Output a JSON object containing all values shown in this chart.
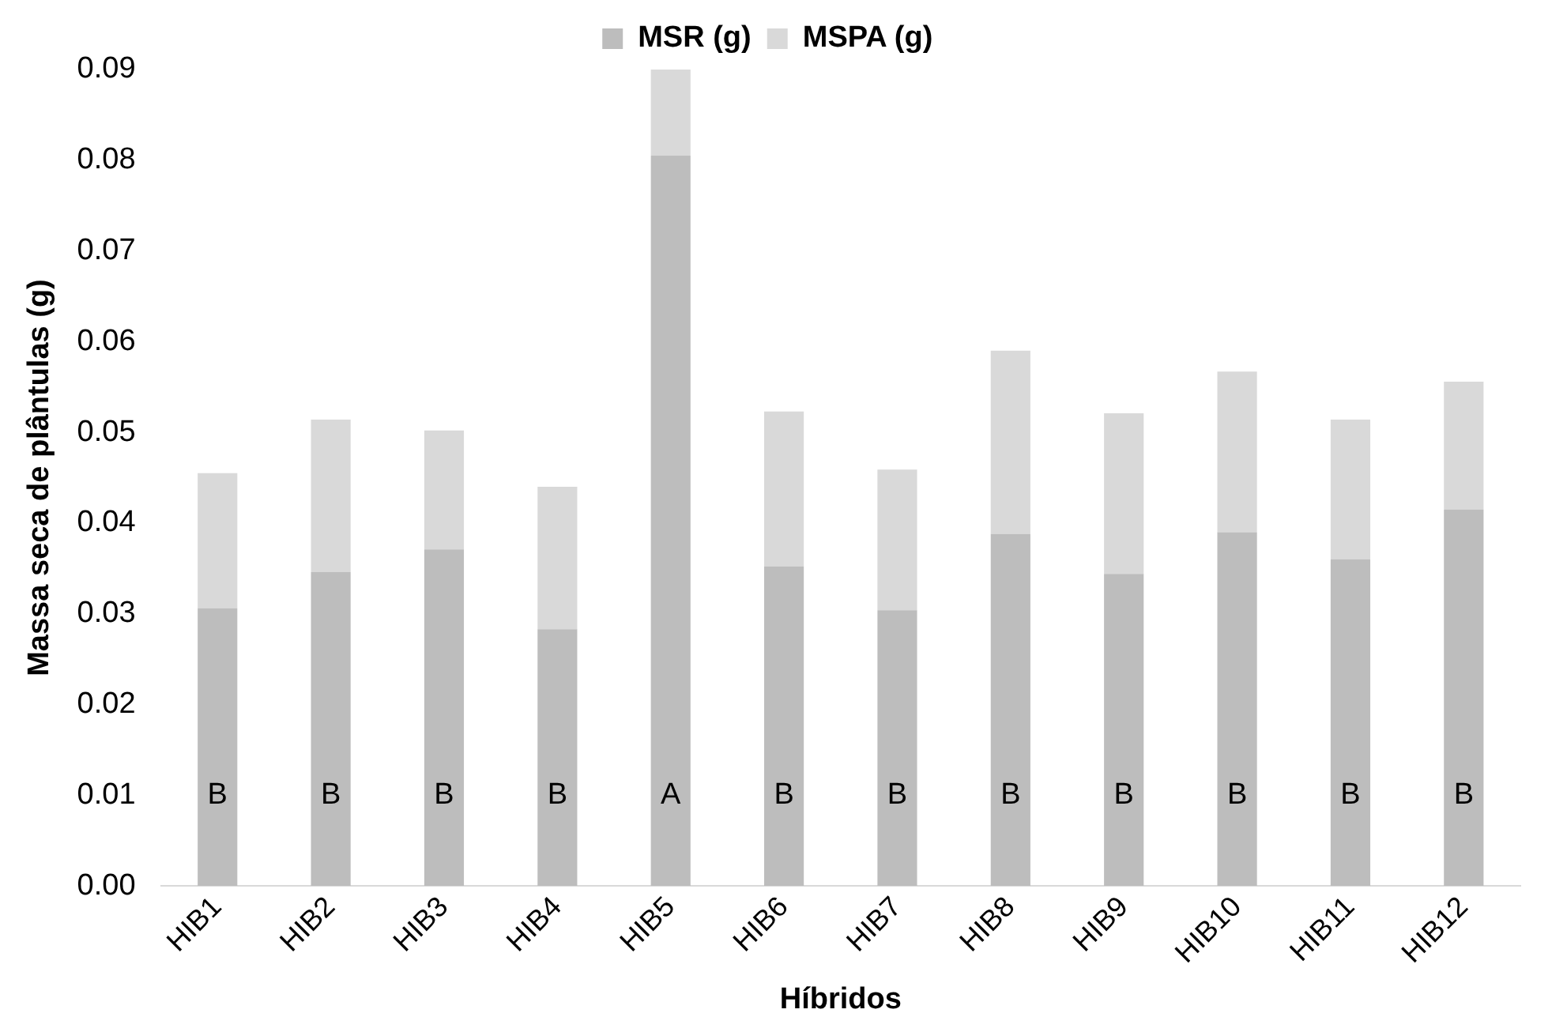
{
  "chart_data": {
    "type": "bar",
    "stacked": true,
    "xlabel": "Híbridos",
    "ylabel": "Massa seca de plântulas (g)",
    "categories": [
      "HIB1",
      "HIB2",
      "HIB3",
      "HIB4",
      "HIB5",
      "HIB6",
      "HIB7",
      "HIB8",
      "HIB9",
      "HIB10",
      "HIB11",
      "HIB12"
    ],
    "series": [
      {
        "name": "MSR (g)",
        "color": "#bdbdbd",
        "values": [
          0.0306,
          0.0346,
          0.0371,
          0.0283,
          0.0805,
          0.0352,
          0.0304,
          0.0388,
          0.0344,
          0.039,
          0.036,
          0.0415
        ]
      },
      {
        "name": "MSPA (g)",
        "color": "#d9d9d9",
        "values": [
          0.0149,
          0.0168,
          0.0131,
          0.0157,
          0.0095,
          0.0171,
          0.0155,
          0.0202,
          0.0177,
          0.0177,
          0.0154,
          0.0141
        ]
      }
    ],
    "ylim": [
      0,
      0.09
    ],
    "yticks": [
      {
        "value": 0,
        "label": "0.00"
      },
      {
        "value": 0.01,
        "label": "0.01"
      },
      {
        "value": 0.02,
        "label": "0.02"
      },
      {
        "value": 0.03,
        "label": "0.03"
      },
      {
        "value": 0.04,
        "label": "0.04"
      },
      {
        "value": 0.05,
        "label": "0.05"
      },
      {
        "value": 0.06,
        "label": "0.06"
      },
      {
        "value": 0.07,
        "label": "0.07"
      },
      {
        "value": 0.08,
        "label": "0.08"
      },
      {
        "value": 0.09,
        "label": "0.09"
      }
    ],
    "grid": false,
    "legend": "top",
    "annotations": [
      {
        "text": "B",
        "x": "HIB1",
        "y": 0.01
      },
      {
        "text": "B",
        "x": "HIB2",
        "y": 0.01
      },
      {
        "text": "B",
        "x": "HIB3",
        "y": 0.01
      },
      {
        "text": "B",
        "x": "HIB4",
        "y": 0.01
      },
      {
        "text": "A",
        "x": "HIB5",
        "y": 0.01
      },
      {
        "text": "B",
        "x": "HIB6",
        "y": 0.01
      },
      {
        "text": "B",
        "x": "HIB7",
        "y": 0.01
      },
      {
        "text": "B",
        "x": "HIB8",
        "y": 0.01
      },
      {
        "text": "B",
        "x": "HIB9",
        "y": 0.01
      },
      {
        "text": "B",
        "x": "HIB10",
        "y": 0.01
      },
      {
        "text": "B",
        "x": "HIB11",
        "y": 0.01
      },
      {
        "text": "B",
        "x": "HIB12",
        "y": 0.01
      }
    ]
  }
}
